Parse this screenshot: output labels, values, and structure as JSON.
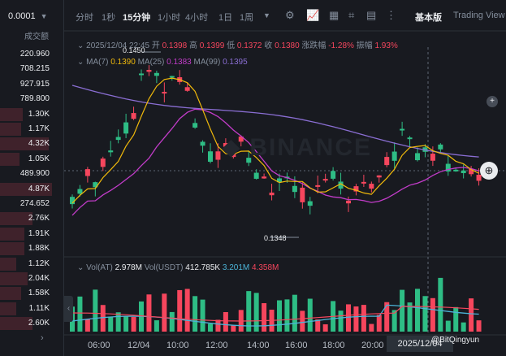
{
  "left_panel": {
    "price_precision": "0.0001",
    "volume_header": "成交额",
    "rows": [
      {
        "value": "220.960",
        "side": "none"
      },
      {
        "value": "708.215",
        "side": "none"
      },
      {
        "value": "927.915",
        "side": "none"
      },
      {
        "value": "789.800",
        "side": "none"
      },
      {
        "value": "1.30K",
        "side": "red"
      },
      {
        "value": "1.17K",
        "side": "red"
      },
      {
        "value": "4.32K",
        "side": "red"
      },
      {
        "value": "1.05K",
        "side": "red"
      },
      {
        "value": "489.900",
        "side": "none"
      },
      {
        "value": "4.87K",
        "side": "red"
      },
      {
        "value": "274.652",
        "side": "none"
      },
      {
        "value": "2.76K",
        "side": "red"
      },
      {
        "value": "1.91K",
        "side": "red"
      },
      {
        "value": "1.88K",
        "side": "red"
      },
      {
        "value": "1.12K",
        "side": "red"
      },
      {
        "value": "2.04K",
        "side": "red"
      },
      {
        "value": "1.58K",
        "side": "red"
      },
      {
        "value": "1.11K",
        "side": "red"
      },
      {
        "value": "2.60K",
        "side": "red"
      }
    ],
    "more_label": "›"
  },
  "toolbar": {
    "timeframes": [
      "分时",
      "1秒",
      "15分钟",
      "1小时",
      "4小时",
      "1日",
      "1周"
    ],
    "active": "15分钟",
    "dropdown_icon": "chevron-down-icon",
    "basic_label": "基本版",
    "tv_label": "Trading View"
  },
  "ohlc": {
    "date": "2025/12/04 22:45",
    "open_label": "开",
    "open": "0.1398",
    "high_label": "高",
    "high": "0.1399",
    "low_label": "低",
    "low": "0.1372",
    "close_label": "收",
    "close": "0.1380",
    "change_label": "涨跌幅",
    "change": "-1.28%",
    "amplitude_label": "振幅",
    "amplitude": "1.93%"
  },
  "ma": {
    "ma7_label": "MA(7)",
    "ma7": "0.1390",
    "ma25_label": "MA(25)",
    "ma25": "0.1383",
    "ma99_label": "MA(99)",
    "ma99": "0.1395"
  },
  "volume": {
    "vol_label": "Vol(AT)",
    "vol": "2.978M",
    "vol_usdt_label": "Vol(USDT)",
    "vol_usdt": "412.785K",
    "ma1": "3.201M",
    "ma2": "4.358M"
  },
  "annotations": {
    "high_mark": "0.1450",
    "low_mark": "0.1348"
  },
  "xaxis": [
    "06:00",
    "12/04",
    "10:00",
    "12:00",
    "14:00",
    "16:00",
    "18:00",
    "20:00"
  ],
  "cursor_date": "2025/12/04",
  "watermark_text": "@BitQingyun",
  "colors": {
    "up": "#2ebd85",
    "down": "#f6465d",
    "ma7": "#f0b90b",
    "ma25": "#c23cc9",
    "ma99": "#8a6ed3",
    "bg": "#181a20"
  }
}
